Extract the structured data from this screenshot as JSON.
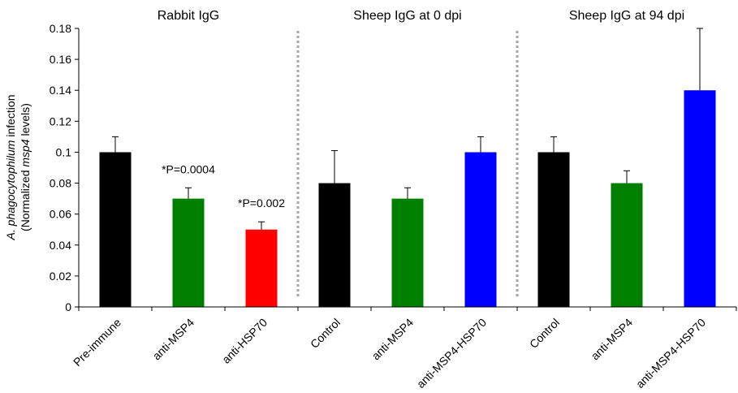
{
  "chart_data": {
    "type": "bar",
    "ylabel": {
      "line1_italic": "A. phagocytophilum",
      "line1_rest": " infection",
      "line2_open": "(Normalized ",
      "line2_italic": "msp4",
      "line2_close": " levels)"
    },
    "ylim": [
      0,
      0.18
    ],
    "yticks": [
      "0",
      "0.02",
      "0.04",
      "0.06",
      "0.08",
      "0.1",
      "0.12",
      "0.14",
      "0.16",
      "0.18"
    ],
    "ytick_values": [
      0,
      0.02,
      0.04,
      0.06,
      0.08,
      0.1,
      0.12,
      0.14,
      0.16,
      0.18
    ],
    "grid": false,
    "groups": [
      {
        "label": "Rabbit IgG",
        "start": 0,
        "end": 2
      },
      {
        "label": "Sheep IgG at 0 dpi",
        "start": 3,
        "end": 5
      },
      {
        "label": "Sheep IgG at 94 dpi",
        "start": 6,
        "end": 8
      }
    ],
    "categories": [
      "Pre-immune",
      "anti-MSP4",
      "anti-HSP70",
      "Control",
      "anti-MSP4",
      "anti-MSP4-HSP70",
      "Control",
      "anti-MSP4",
      "anti-MSP4-HSP70"
    ],
    "values": [
      0.1,
      0.07,
      0.05,
      0.08,
      0.07,
      0.1,
      0.1,
      0.08,
      0.14
    ],
    "errors": [
      0.01,
      0.007,
      0.005,
      0.021,
      0.007,
      0.01,
      0.01,
      0.008,
      0.04
    ],
    "colors": [
      "#000000",
      "#008000",
      "#ff0000",
      "#000000",
      "#008000",
      "#0000ff",
      "#000000",
      "#008000",
      "#0000ff"
    ],
    "annotations": [
      {
        "text": "*P=0.0004",
        "index": 1
      },
      {
        "text": "*P=0.002",
        "index": 2
      }
    ]
  }
}
